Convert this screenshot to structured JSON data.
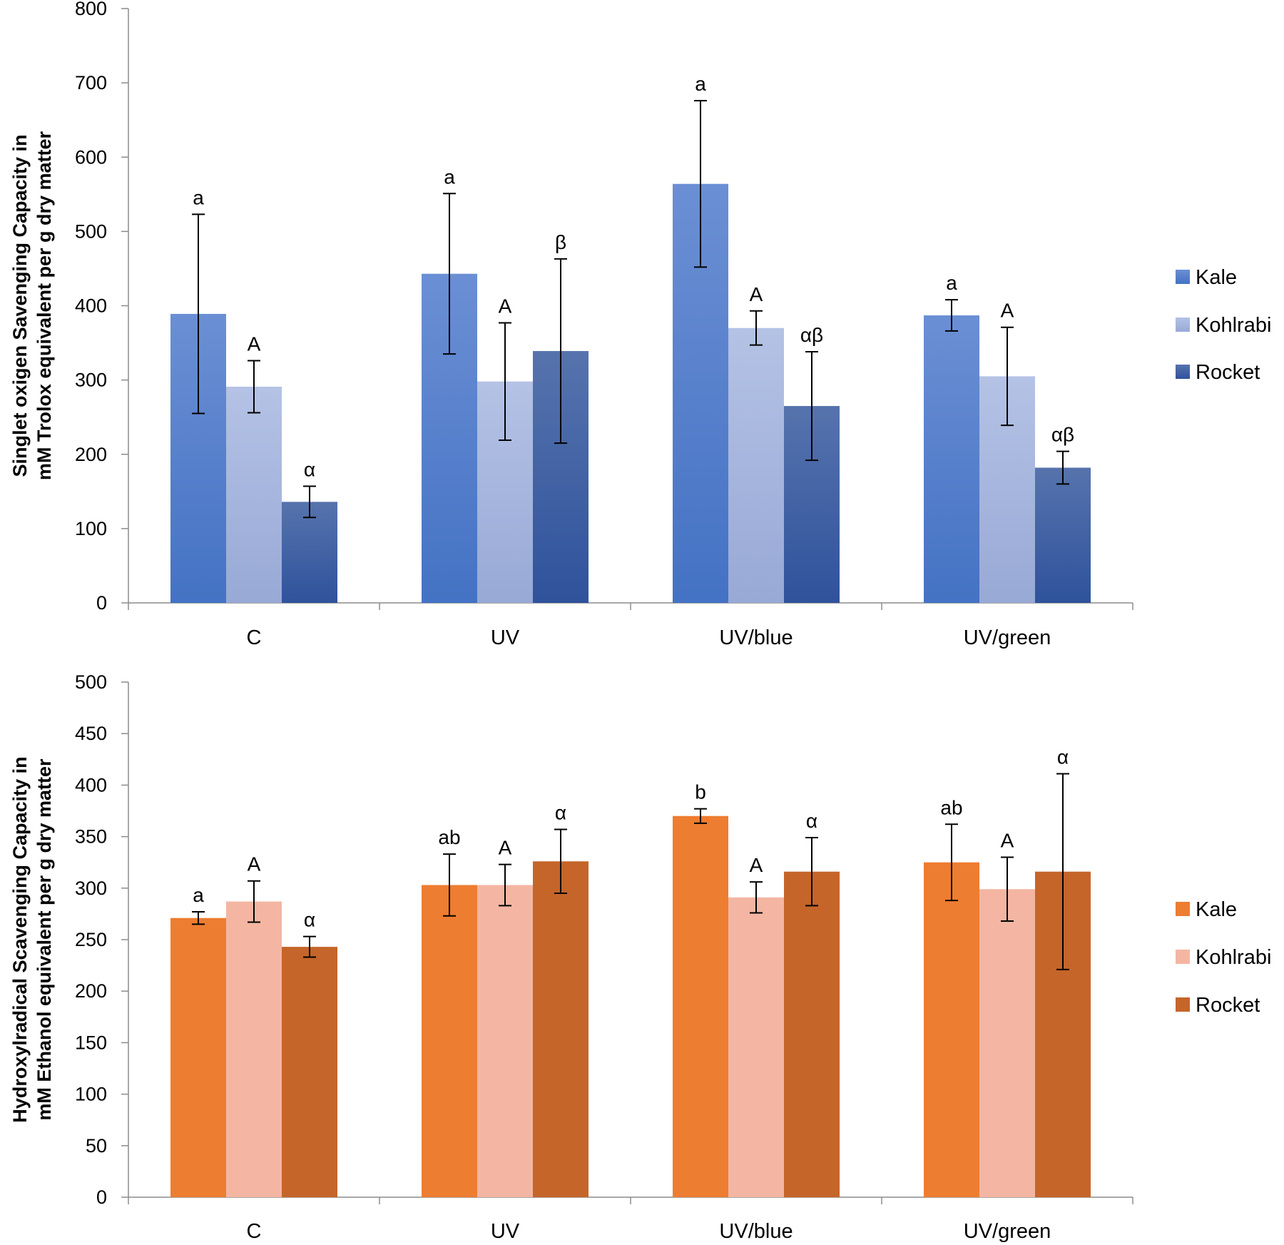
{
  "chart_data": [
    {
      "type": "bar",
      "categories": [
        "C",
        "UV",
        "UV/blue",
        "UV/green"
      ],
      "ylabel": [
        "Singlet oxigen Savenging Capacity in",
        "mM Trolox equivalent per g dry matter"
      ],
      "ylim": [
        0,
        800
      ],
      "ytick_step": 100,
      "ytick_labels": [
        "0",
        "100",
        "200",
        "300",
        "400",
        "500",
        "600",
        "700",
        "800"
      ],
      "legend_position": "right",
      "series": [
        {
          "name": "Kale",
          "color": "#4472c4",
          "color_light": "#6b8fd4",
          "values": [
            389,
            443,
            564,
            387
          ],
          "error": [
            134,
            108,
            112,
            21
          ],
          "significance": [
            "a",
            "a",
            "a",
            "a"
          ]
        },
        {
          "name": "Kohlrabi",
          "color": "#98a9d6",
          "color_light": "#b4c2e5",
          "values": [
            291,
            298,
            370,
            305
          ],
          "error": [
            35,
            79,
            23,
            66
          ],
          "significance": [
            "A",
            "A",
            "A",
            "A"
          ]
        },
        {
          "name": "Rocket",
          "color": "#2f529c",
          "color_light": "#5673ad",
          "values": [
            136,
            339,
            265,
            182
          ],
          "error": [
            21,
            124,
            73,
            22
          ],
          "significance": [
            "α",
            "β",
            "αβ",
            "αβ"
          ]
        }
      ]
    },
    {
      "type": "bar",
      "categories": [
        "C",
        "UV",
        "UV/blue",
        "UV/green"
      ],
      "ylabel": [
        "Hydroxylradical Scavenging Capacity in",
        "mM Ethanol equivalent per g dry matter"
      ],
      "ylim": [
        0,
        500
      ],
      "ytick_step": 50,
      "ytick_labels": [
        "0",
        "50",
        "100",
        "150",
        "200",
        "250",
        "300",
        "350",
        "400",
        "450",
        "500"
      ],
      "legend_position": "right",
      "series": [
        {
          "name": "Kale",
          "color": "#ed7d31",
          "color_light": "#ed7d31",
          "values": [
            271,
            303,
            370,
            325
          ],
          "error": [
            6,
            30,
            7,
            37
          ],
          "significance": [
            "a",
            "ab",
            "b",
            "ab"
          ]
        },
        {
          "name": "Kohlrabi",
          "color": "#f4b6a2",
          "color_light": "#f4b6a2",
          "values": [
            287,
            303,
            291,
            299
          ],
          "error": [
            20,
            20,
            15,
            31
          ],
          "significance": [
            "A",
            "A",
            "A",
            "A"
          ]
        },
        {
          "name": "Rocket",
          "color": "#c5652a",
          "color_light": "#c5652a",
          "values": [
            243,
            326,
            316,
            316
          ],
          "error": [
            10,
            31,
            33,
            95
          ],
          "significance": [
            "α",
            "α",
            "α",
            "α"
          ]
        }
      ]
    }
  ]
}
